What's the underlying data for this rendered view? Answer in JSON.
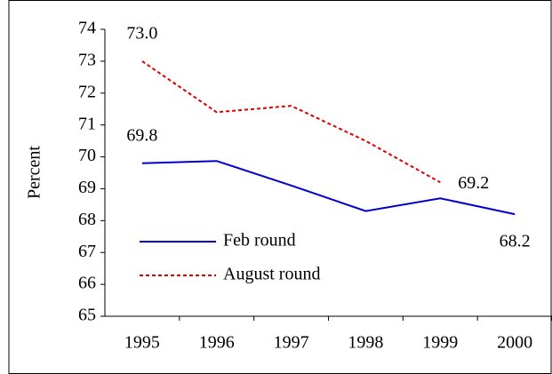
{
  "chart_data": {
    "type": "line",
    "y_label": "Percent",
    "categories": [
      "1995",
      "1996",
      "1997",
      "1998",
      "1999",
      "2000"
    ],
    "series": [
      {
        "name": "Feb round",
        "color": "#0000cc",
        "dash": "solid",
        "values": [
          69.8,
          69.87,
          69.1,
          68.3,
          68.7,
          68.2
        ],
        "value_labels": [
          "69.8",
          null,
          null,
          null,
          null,
          "68.2"
        ]
      },
      {
        "name": "August round",
        "color": "#dd0000",
        "dash": "dotted",
        "values": [
          73.0,
          71.4,
          71.6,
          70.5,
          69.2,
          null
        ],
        "value_labels": [
          "73.0",
          null,
          null,
          null,
          "69.2",
          null
        ]
      }
    ],
    "ylim": [
      65,
      74
    ],
    "yticks": [
      65,
      66,
      67,
      68,
      69,
      70,
      71,
      72,
      73,
      74
    ],
    "grid": false,
    "legend": "lower left"
  }
}
